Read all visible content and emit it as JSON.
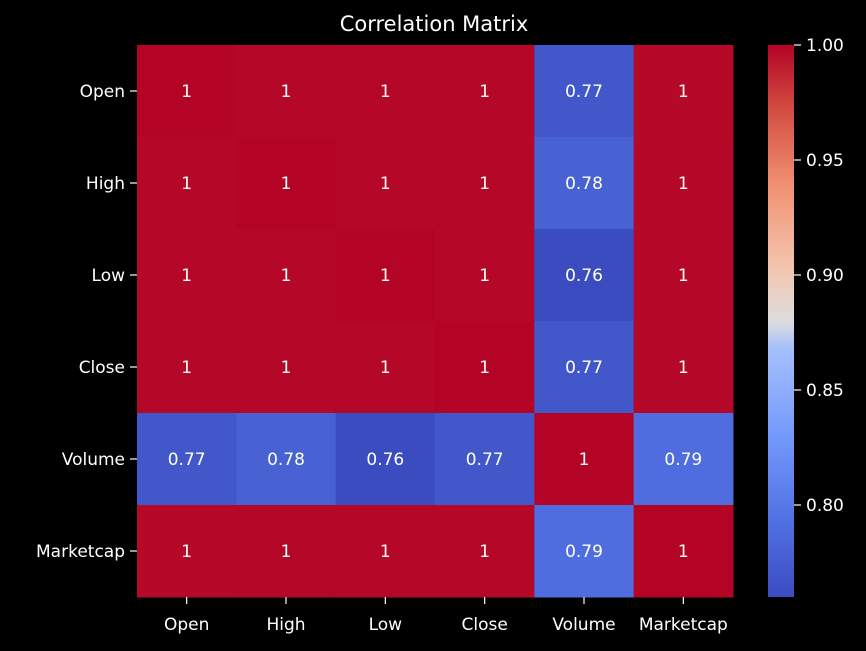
{
  "chart_data": {
    "type": "heatmap",
    "title": "Correlation Matrix",
    "rows": [
      "Open",
      "High",
      "Low",
      "Close",
      "Volume",
      "Marketcap"
    ],
    "cols": [
      "Open",
      "High",
      "Low",
      "Close",
      "Volume",
      "Marketcap"
    ],
    "values": [
      [
        1.0,
        0.999,
        0.999,
        0.999,
        0.77,
        0.998
      ],
      [
        0.999,
        1.0,
        0.999,
        0.999,
        0.78,
        0.999
      ],
      [
        0.999,
        0.999,
        1.0,
        0.999,
        0.76,
        0.999
      ],
      [
        0.999,
        0.999,
        0.999,
        1.0,
        0.77,
        0.999
      ],
      [
        0.77,
        0.78,
        0.76,
        0.77,
        1.0,
        0.79
      ],
      [
        0.998,
        0.999,
        0.999,
        0.999,
        0.79,
        1.0
      ]
    ],
    "annotations": [
      [
        "1",
        "1",
        "1",
        "1",
        "0.77",
        "1"
      ],
      [
        "1",
        "1",
        "1",
        "1",
        "0.78",
        "1"
      ],
      [
        "1",
        "1",
        "1",
        "1",
        "0.76",
        "1"
      ],
      [
        "1",
        "1",
        "1",
        "1",
        "0.77",
        "1"
      ],
      [
        "0.77",
        "0.78",
        "0.76",
        "0.77",
        "1",
        "0.79"
      ],
      [
        "1",
        "1",
        "1",
        "1",
        "0.79",
        "1"
      ]
    ],
    "colormap": "coolwarm",
    "colorbar": {
      "vmin": 0.76,
      "vmax": 1.0,
      "ticks": [
        0.8,
        0.85,
        0.9,
        0.95,
        1.0
      ],
      "tick_labels": [
        "0.80",
        "0.85",
        "0.90",
        "0.95",
        "1.00"
      ]
    },
    "grid": false,
    "background": "#000000"
  }
}
